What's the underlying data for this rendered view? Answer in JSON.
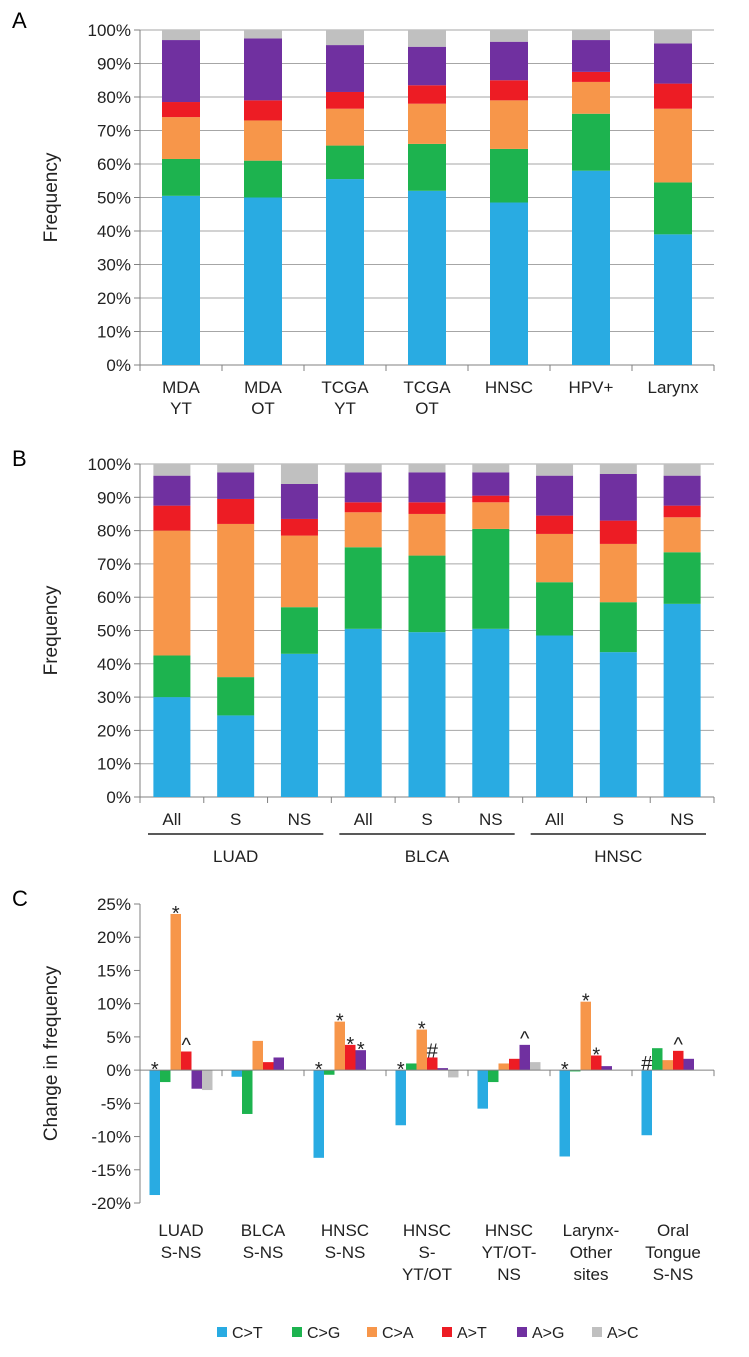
{
  "colors": {
    "C>T": "#29abe2",
    "C>G": "#1db34f",
    "C>A": "#f7964a",
    "A>T": "#ed1c24",
    "A>G": "#7030a0",
    "A>C": "#c0c0c0",
    "grid": "#a6a6a6",
    "axis": "#808080"
  },
  "legend": {
    "items": [
      "C>T",
      "C>G",
      "C>A",
      "A>T",
      "A>G",
      "A>C"
    ],
    "placement": "bottom"
  },
  "chart_data": [
    {
      "panel": "A",
      "type": "bar",
      "stacked": true,
      "ylabel": "Frequency",
      "ylim": [
        0,
        100
      ],
      "yticks": [
        "0%",
        "10%",
        "20%",
        "30%",
        "40%",
        "50%",
        "60%",
        "70%",
        "80%",
        "90%",
        "100%"
      ],
      "grid": true,
      "categories": [
        [
          "MDA",
          "YT"
        ],
        [
          "MDA",
          "OT"
        ],
        [
          "TCGA",
          "YT"
        ],
        [
          "TCGA",
          "OT"
        ],
        [
          "HNSC"
        ],
        [
          "HPV+"
        ],
        [
          "Larynx"
        ]
      ],
      "series": [
        {
          "name": "C>T",
          "values": [
            50.5,
            50.0,
            55.5,
            52.0,
            48.5,
            58.0,
            39.0
          ]
        },
        {
          "name": "C>G",
          "values": [
            11.0,
            11.0,
            10.0,
            14.0,
            16.0,
            17.0,
            15.5
          ]
        },
        {
          "name": "C>A",
          "values": [
            12.5,
            12.0,
            11.0,
            12.0,
            14.5,
            9.5,
            22.0
          ]
        },
        {
          "name": "A>T",
          "values": [
            4.5,
            6.0,
            5.0,
            5.5,
            6.0,
            3.0,
            7.5
          ]
        },
        {
          "name": "A>G",
          "values": [
            18.5,
            18.5,
            14.0,
            11.5,
            11.5,
            9.5,
            12.0
          ]
        },
        {
          "name": "A>C",
          "values": [
            3.0,
            2.5,
            4.5,
            5.0,
            3.5,
            3.0,
            4.0
          ]
        }
      ]
    },
    {
      "panel": "B",
      "type": "bar",
      "stacked": true,
      "ylabel": "Frequency",
      "ylim": [
        0,
        100
      ],
      "yticks": [
        "0%",
        "10%",
        "20%",
        "30%",
        "40%",
        "50%",
        "60%",
        "70%",
        "80%",
        "90%",
        "100%"
      ],
      "grid": true,
      "categories": [
        "All",
        "S",
        "NS",
        "All",
        "S",
        "NS",
        "All",
        "S",
        "NS"
      ],
      "groups": [
        {
          "label": "LUAD",
          "span": [
            0,
            2
          ]
        },
        {
          "label": "BLCA",
          "span": [
            3,
            5
          ]
        },
        {
          "label": "HNSC",
          "span": [
            6,
            8
          ]
        }
      ],
      "series": [
        {
          "name": "C>T",
          "values": [
            30.0,
            24.5,
            43.0,
            50.5,
            49.5,
            50.5,
            48.5,
            43.5,
            58.0
          ]
        },
        {
          "name": "C>G",
          "values": [
            12.5,
            11.5,
            14.0,
            24.5,
            23.0,
            30.0,
            16.0,
            15.0,
            15.5
          ]
        },
        {
          "name": "C>A",
          "values": [
            37.5,
            46.0,
            21.5,
            10.5,
            12.5,
            8.0,
            14.5,
            17.5,
            10.5
          ]
        },
        {
          "name": "A>T",
          "values": [
            7.5,
            7.5,
            5.0,
            3.0,
            3.5,
            2.0,
            5.5,
            7.0,
            3.5
          ]
        },
        {
          "name": "A>G",
          "values": [
            9.0,
            8.0,
            10.5,
            9.0,
            9.0,
            7.0,
            12.0,
            14.0,
            9.0
          ]
        },
        {
          "name": "A>C",
          "values": [
            3.5,
            2.5,
            6.0,
            2.5,
            2.5,
            2.5,
            3.5,
            3.0,
            3.5
          ]
        }
      ]
    },
    {
      "panel": "C",
      "type": "bar",
      "stacked": false,
      "ylabel": "Change in frequency",
      "ylim": [
        -20,
        25
      ],
      "yticks": [
        "-20%",
        "-15%",
        "-10%",
        "-5%",
        "0%",
        "5%",
        "10%",
        "15%",
        "20%",
        "25%"
      ],
      "grid": false,
      "categories": [
        [
          "LUAD",
          "S-NS"
        ],
        [
          "BLCA",
          "S-NS"
        ],
        [
          "HNSC",
          "S-NS"
        ],
        [
          "HNSC",
          "S-",
          "YT/OT"
        ],
        [
          "HNSC",
          "YT/OT-",
          "NS"
        ],
        [
          "Larynx-",
          "Other",
          "sites"
        ],
        [
          "Oral",
          "Tongue",
          "S-NS"
        ]
      ],
      "series": [
        {
          "name": "C>T",
          "values": [
            -18.8,
            -1.0,
            -13.2,
            -8.3,
            -5.8,
            -13.0,
            -9.8
          ]
        },
        {
          "name": "C>G",
          "values": [
            -1.8,
            -6.6,
            -0.7,
            1.0,
            -1.8,
            -0.2,
            3.3
          ]
        },
        {
          "name": "C>A",
          "values": [
            23.5,
            4.4,
            7.3,
            6.1,
            1.0,
            10.3,
            1.5
          ]
        },
        {
          "name": "A>T",
          "values": [
            2.8,
            1.2,
            3.8,
            1.9,
            1.7,
            2.2,
            2.9
          ]
        },
        {
          "name": "A>G",
          "values": [
            -2.8,
            1.9,
            3.0,
            0.3,
            3.8,
            0.6,
            1.7
          ]
        },
        {
          "name": "A>C",
          "values": [
            -3.0,
            0.0,
            0.0,
            -1.1,
            1.2,
            0.0,
            0.0
          ]
        }
      ],
      "annotations": [
        {
          "group": 0,
          "series": "C>T",
          "text": "*"
        },
        {
          "group": 0,
          "series": "C>A",
          "text": "*"
        },
        {
          "group": 0,
          "series": "A>T",
          "text": "^"
        },
        {
          "group": 2,
          "series": "C>T",
          "text": "*"
        },
        {
          "group": 2,
          "series": "C>A",
          "text": "*"
        },
        {
          "group": 2,
          "series": "A>T",
          "text": "*"
        },
        {
          "group": 2,
          "series": "A>G",
          "text": "*"
        },
        {
          "group": 3,
          "series": "C>T",
          "text": "*"
        },
        {
          "group": 3,
          "series": "C>A",
          "text": "*"
        },
        {
          "group": 3,
          "series": "A>T",
          "text": "#"
        },
        {
          "group": 4,
          "series": "A>G",
          "text": "^"
        },
        {
          "group": 5,
          "series": "C>T",
          "text": "*"
        },
        {
          "group": 5,
          "series": "C>A",
          "text": "*"
        },
        {
          "group": 5,
          "series": "A>T",
          "text": "*"
        },
        {
          "group": 6,
          "series": "C>T",
          "text": "#"
        },
        {
          "group": 6,
          "series": "A>T",
          "text": "^"
        }
      ]
    }
  ],
  "panel_letters": [
    "A",
    "B",
    "C"
  ]
}
